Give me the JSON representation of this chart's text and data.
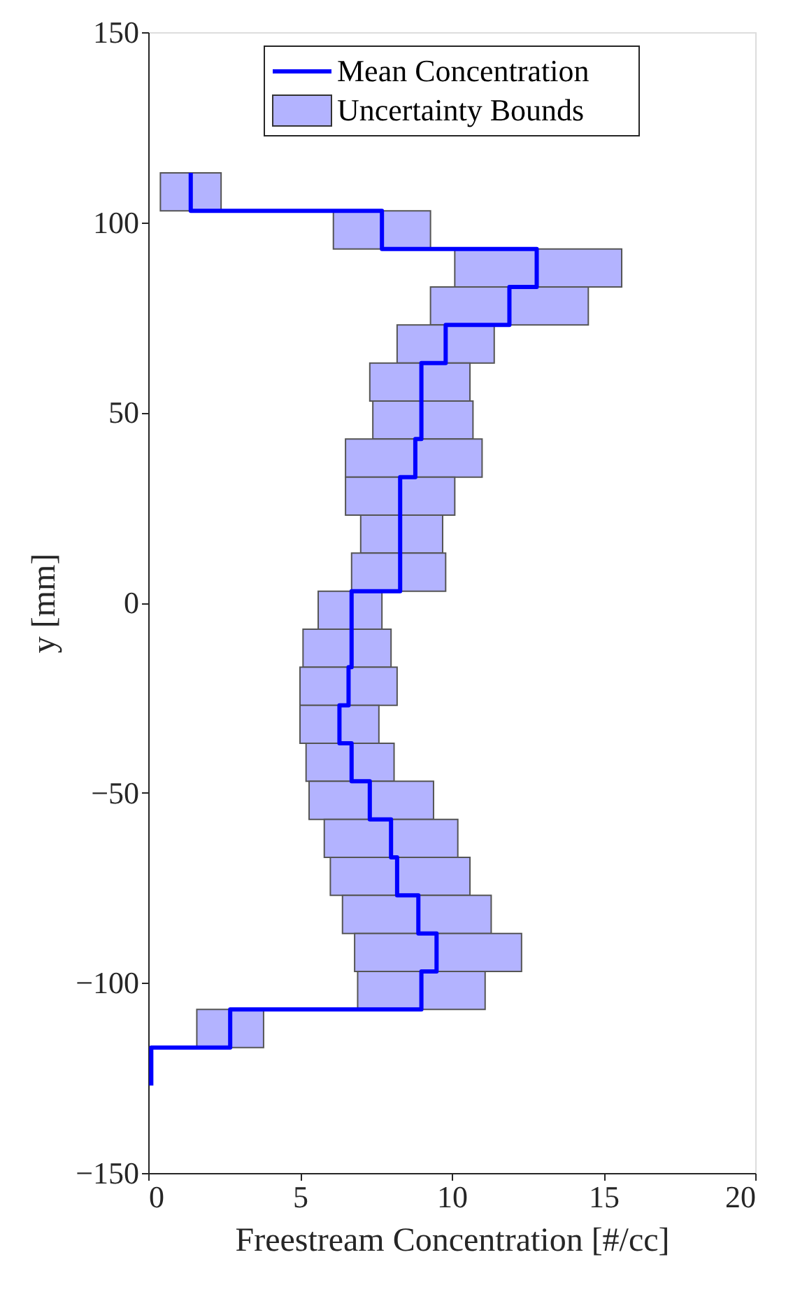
{
  "chart_data": {
    "type": "bar",
    "orientation": "horizontal",
    "xlabel": "Freestream Concentration [#/cc]",
    "ylabel": "y [mm]",
    "series": [
      {
        "name": "Uncertainty Bounds",
        "color": "#b3b3ff",
        "x": [
          108,
          98,
          88,
          78,
          68,
          58,
          48,
          38,
          28,
          18,
          8,
          -2,
          -12,
          -22,
          -32,
          -42,
          -52,
          -62,
          -72,
          -82,
          -92,
          -102,
          -112
        ],
        "base": [
          0.4,
          6.1,
          10.1,
          9.3,
          8.2,
          7.3,
          7.4,
          6.5,
          6.5,
          7.0,
          6.7,
          5.6,
          5.1,
          5.0,
          5.0,
          5.2,
          5.3,
          5.8,
          6.0,
          6.4,
          6.8,
          6.9,
          1.6
        ],
        "values": [
          2.0,
          3.2,
          5.5,
          5.2,
          3.2,
          3.3,
          3.3,
          4.5,
          3.6,
          2.7,
          3.1,
          2.1,
          2.9,
          3.2,
          2.6,
          2.9,
          4.1,
          4.4,
          4.6,
          4.9,
          5.5,
          4.2,
          2.2
        ]
      },
      {
        "name": "Mean Concentration",
        "type": "line",
        "color": "#0000ff",
        "x": [
          113,
          103,
          103,
          93,
          93,
          83,
          83,
          73,
          73,
          63,
          63,
          53,
          53,
          43,
          43,
          33,
          33,
          23,
          23,
          13,
          13,
          3,
          3,
          -7,
          -7,
          -17,
          -17,
          -27,
          -27,
          -37,
          -37,
          -47,
          -47,
          -57,
          -57,
          -67,
          -67,
          -77,
          -77,
          -87,
          -87,
          -97,
          -97,
          -107,
          -107,
          -117,
          -117,
          -127
        ],
        "values": [
          1.4,
          1.4,
          7.7,
          7.7,
          12.8,
          12.8,
          11.9,
          11.9,
          9.8,
          9.8,
          9.0,
          9.0,
          9.0,
          9.0,
          8.8,
          8.8,
          8.3,
          8.3,
          8.3,
          8.3,
          8.3,
          8.3,
          6.7,
          6.7,
          6.7,
          6.7,
          6.6,
          6.6,
          6.3,
          6.3,
          6.7,
          6.7,
          7.3,
          7.3,
          8.0,
          8.0,
          8.2,
          8.2,
          8.9,
          8.9,
          9.5,
          9.5,
          9.0,
          9.0,
          2.7,
          2.7,
          0.1,
          0.1
        ]
      }
    ],
    "xlim": [
      0,
      20
    ],
    "xticks": [
      0,
      5,
      10,
      15,
      20
    ],
    "ylim": [
      -150,
      150
    ],
    "yticks": [
      -150,
      -100,
      -50,
      0,
      50,
      100,
      150
    ],
    "grid": false,
    "legend": "top"
  }
}
